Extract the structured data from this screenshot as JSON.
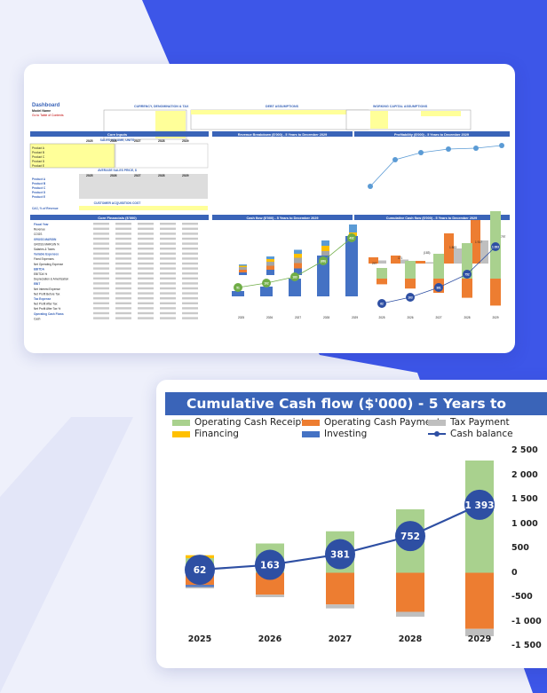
{
  "colors": {
    "accent": "#3a64b8",
    "background_blue": "#3d56e8",
    "receipts": "#a9d18e",
    "payments": "#ed7d31",
    "tax": "#bfbfbf",
    "financing": "#ffc000",
    "investing": "#4472c4",
    "balance": "#2e4fa3"
  },
  "dashboard": {
    "title": "Dashboard",
    "model_name": "Model Name",
    "toc_link": "Go to Table of Contents",
    "sections": {
      "currency": "CURRENCY, DENOMINATION & TAX",
      "debt": "DEBT ASSUMPTIONS",
      "wc": "WORKING CAPITAL ASSUMPTIONS",
      "core_inputs": "Core Inputs",
      "sales_volume": "SALES VOLUME, UNITS",
      "avg_price": "AVERAGE SALES PRICE, $",
      "cac": "CUSTOMER ACQUISITION COST",
      "core_financials": "Core Financials ($'000)",
      "revenue_chart": "Revenue Breakdown ($'000) - 5 Years to December 2029",
      "profitability_chart": "Profitability ($'000) - 5 Years to December 2029",
      "cashflow_chart": "Cash flow ($'000) - 5 Years to December 2029",
      "cumulative_chart_small": "Cumulative Cash flow ($'000) - 5 Years to December 2029"
    },
    "years": [
      "2025",
      "2026",
      "2027",
      "2028",
      "2029"
    ],
    "products": [
      "Product A",
      "Product B",
      "Product C",
      "Product D",
      "Product E"
    ],
    "fin_rows": [
      "Fiscal Year",
      "Revenue",
      "COGS",
      "GROSS MARGIN",
      "GROSS MARGIN %",
      "Salaries & Taxes",
      "Variable Expenses",
      "Fixed Expenses",
      "Net Operating Expense",
      "EBITDA",
      "EBITDA %",
      "Depreciation & Amortization",
      "EBIT",
      "Net Interest Expense",
      "Net Profit Before Tax",
      "Tax Expense",
      "Net Profit After Tax",
      "Net Profit After Tax %",
      "Operating Cash Flows",
      "Cash"
    ],
    "cac_label": "CAC, % of Revenue",
    "profit_labels": [
      "247",
      "171",
      "(183)",
      "1 883",
      "1 917",
      "797"
    ],
    "small_cf_labels": [
      "51",
      "102",
      "183",
      "(66)",
      "432",
      "797"
    ],
    "small_cum_labels": [
      "62",
      "163",
      "381",
      "752",
      "1 393"
    ]
  },
  "chart_data": {
    "type": "bar",
    "title": "Cumulative Cash flow ($'000) - 5 Years to December 2029",
    "categories": [
      "2025",
      "2026",
      "2027",
      "2028",
      "2029"
    ],
    "ylim": [
      -1500,
      2500
    ],
    "yticks": [
      "2 500",
      "2 000",
      "1 500",
      "1 000",
      "500",
      "0",
      "-500",
      "-1 000",
      "-1 500"
    ],
    "legend_position": "top",
    "series": [
      {
        "name": "Operating Cash Receipts",
        "kind": "stacked_bar",
        "values": [
          300,
          600,
          850,
          1300,
          2300
        ]
      },
      {
        "name": "Operating Cash Payments",
        "kind": "stacked_bar",
        "values": [
          -250,
          -450,
          -650,
          -800,
          -1150
        ]
      },
      {
        "name": "Tax Payment",
        "kind": "stacked_bar",
        "values": [
          -30,
          -50,
          -80,
          -100,
          -150
        ]
      },
      {
        "name": "Financing",
        "kind": "stacked_bar",
        "values": [
          60,
          0,
          0,
          0,
          0
        ]
      },
      {
        "name": "Investing",
        "kind": "stacked_bar",
        "values": [
          -40,
          0,
          0,
          0,
          0
        ]
      },
      {
        "name": "Cash balance",
        "kind": "line",
        "values": [
          62,
          163,
          381,
          752,
          1393
        ],
        "labels": [
          "62",
          "163",
          "381",
          "752",
          "1 393"
        ]
      }
    ]
  }
}
